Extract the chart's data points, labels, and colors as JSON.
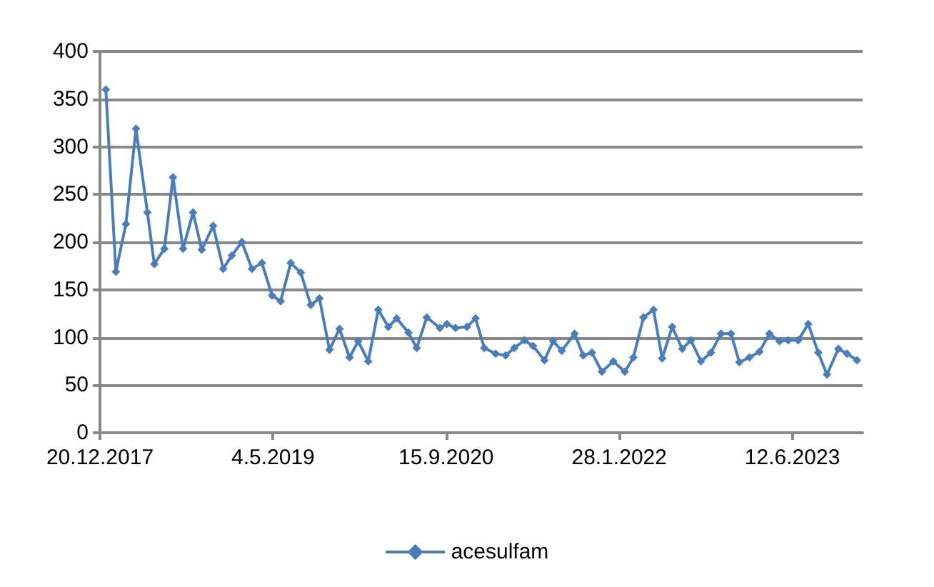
{
  "chart_data": {
    "type": "line",
    "x": [
      "2018-01-06",
      "2018-02-04",
      "2018-03-05",
      "2018-04-03",
      "2018-05-06",
      "2018-05-26",
      "2018-06-24",
      "2018-07-19",
      "2018-08-17",
      "2018-09-15",
      "2018-10-10",
      "2018-11-12",
      "2018-12-11",
      "2019-01-05",
      "2019-02-03",
      "2019-03-04",
      "2019-04-02",
      "2019-05-01",
      "2019-05-26",
      "2019-06-24",
      "2019-07-23",
      "2019-08-21",
      "2019-09-15",
      "2019-10-14",
      "2019-11-12",
      "2019-12-11",
      "2020-01-05",
      "2020-02-03",
      "2020-03-03",
      "2020-04-01",
      "2020-04-25",
      "2020-05-29",
      "2020-06-22",
      "2020-07-21",
      "2020-08-28",
      "2020-09-17",
      "2020-10-12",
      "2020-11-14",
      "2020-12-09",
      "2021-01-03",
      "2021-02-05",
      "2021-03-06",
      "2021-03-31",
      "2021-04-29",
      "2021-05-24",
      "2021-06-26",
      "2021-07-21",
      "2021-08-15",
      "2021-09-21",
      "2021-10-16",
      "2021-11-10",
      "2021-12-09",
      "2022-01-11",
      "2022-02-13",
      "2022-03-10",
      "2022-04-08",
      "2022-05-07",
      "2022-06-01",
      "2022-06-30",
      "2022-07-29",
      "2022-08-23",
      "2022-09-21",
      "2022-10-20",
      "2022-11-18",
      "2022-12-17",
      "2023-01-10",
      "2023-02-08",
      "2023-03-09",
      "2023-04-07",
      "2023-05-06",
      "2023-05-31",
      "2023-06-29",
      "2023-07-28",
      "2023-08-26",
      "2023-09-20",
      "2023-10-23",
      "2023-11-17",
      "2023-12-16"
    ],
    "series": [
      {
        "name": "acesulfam",
        "color": "#4a7ebb",
        "values": [
          360,
          169,
          219,
          319,
          231,
          177,
          193,
          268,
          193,
          231,
          192,
          217,
          172,
          186,
          200,
          172,
          178,
          144,
          138,
          178,
          168,
          134,
          141,
          87,
          109,
          79,
          96,
          75,
          129,
          111,
          120,
          105,
          89,
          121,
          110,
          114,
          110,
          111,
          120,
          89,
          83,
          81,
          89,
          97,
          91,
          76,
          96,
          86,
          104,
          81,
          84,
          64,
          75,
          64,
          79,
          121,
          129,
          78,
          111,
          88,
          97,
          75,
          84,
          104,
          104,
          74,
          79,
          85,
          104,
          96,
          97,
          97,
          114,
          84,
          61,
          88,
          83,
          76
        ]
      }
    ],
    "xlim": [
      "2017-12-20",
      "2024-01-01"
    ],
    "xticks": [
      {
        "value": "2017-12-20",
        "label": "20.12.2017"
      },
      {
        "value": "2019-05-04",
        "label": "4.5.2019"
      },
      {
        "value": "2020-09-15",
        "label": "15.9.2020"
      },
      {
        "value": "2022-01-28",
        "label": "28.1.2022"
      },
      {
        "value": "2023-06-12",
        "label": "12.6.2023"
      }
    ],
    "ylim": [
      0,
      400
    ],
    "yticks": [
      0,
      50,
      100,
      150,
      200,
      250,
      300,
      350,
      400
    ],
    "grid": "y",
    "legend": "bottom",
    "marker": "diamond",
    "line_style": "solid"
  }
}
